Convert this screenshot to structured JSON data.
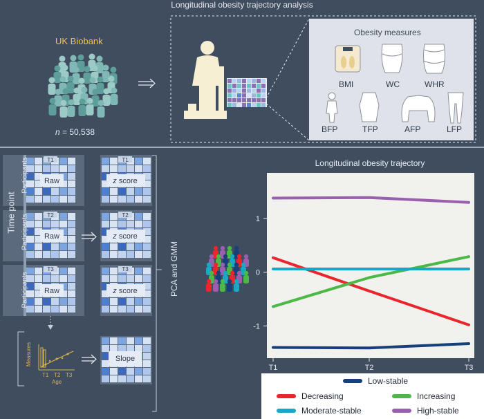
{
  "title": "Longitudinal obesity trajectory analysis",
  "cohort": {
    "name": "UK Biobank",
    "n_label": "n",
    "n_value": "= 50,538"
  },
  "obesity_measures": {
    "title": "Obesity measures",
    "items": [
      "BMI",
      "WC",
      "WHR",
      "BFP",
      "TFP",
      "AFP",
      "LFP"
    ]
  },
  "pipeline": {
    "axis_label": "Time point",
    "participants_label": "Participants",
    "timepoints": [
      "T1",
      "T2",
      "T3"
    ],
    "raw_label": "Raw",
    "z_label_italic": "z",
    "z_label_rest": " score",
    "slope_label": "Slope",
    "mini_chart": {
      "ylabel": "Measures",
      "xlabel": "Age",
      "ticks": [
        "T1",
        "T2",
        "T3"
      ]
    },
    "method_label": "PCA and GMM"
  },
  "colors": {
    "background": "#3f4d5f",
    "accent": "#f2c24a",
    "low_stable": "#173f7a",
    "decreasing": "#e8262c",
    "increasing": "#4cb848",
    "moderate_stable": "#17a9c4",
    "high_stable": "#9a5fae"
  },
  "chart_data": {
    "type": "line",
    "title": "Longitudinal obesity trajectory",
    "x": [
      "T1",
      "T2",
      "T3"
    ],
    "yticks": [
      -1,
      0,
      1
    ],
    "ylim": [
      -1.6,
      1.85
    ],
    "series": [
      {
        "name": "Low-stable",
        "values": [
          -1.4,
          -1.41,
          -1.33
        ],
        "color": "#173f7a"
      },
      {
        "name": "Decreasing",
        "values": [
          0.27,
          -0.35,
          -0.98
        ],
        "color": "#e8262c"
      },
      {
        "name": "Increasing",
        "values": [
          -0.64,
          -0.1,
          0.29
        ],
        "color": "#4cb848"
      },
      {
        "name": "Moderate-stable",
        "values": [
          0.06,
          0.06,
          0.06
        ],
        "color": "#17a9c4"
      },
      {
        "name": "High-stable",
        "values": [
          1.38,
          1.39,
          1.3
        ],
        "color": "#9a5fae"
      }
    ]
  }
}
